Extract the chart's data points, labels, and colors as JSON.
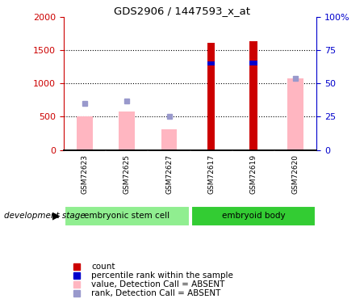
{
  "title": "GDS2906 / 1447593_x_at",
  "samples": [
    "GSM72623",
    "GSM72625",
    "GSM72627",
    "GSM72617",
    "GSM72619",
    "GSM72620"
  ],
  "ylim_left": [
    0,
    2000
  ],
  "ylim_right": [
    0,
    100
  ],
  "yticks_left": [
    0,
    500,
    1000,
    1500,
    2000
  ],
  "yticks_right": [
    0,
    25,
    50,
    75,
    100
  ],
  "ytick_labels_right": [
    "0",
    "25",
    "50",
    "75",
    "100%"
  ],
  "background_color": "#ffffff",
  "red_bar_color": "#CC0000",
  "pink_bar_color": "#FFB6C1",
  "blue_marker_color": "#9999CC",
  "blue_segment_color": "#0000CC",
  "gray_bg": "#D3D3D3",
  "green_light": "#90EE90",
  "green_dark": "#33CC33",
  "absent_value_bars": {
    "GSM72623": 500,
    "GSM72625": 575,
    "GSM72627": 315,
    "GSM72617": null,
    "GSM72619": null,
    "GSM72620": 1070
  },
  "absent_rank_markers": {
    "GSM72623": 700,
    "GSM72625": 740,
    "GSM72627": 510,
    "GSM72617": null,
    "GSM72619": null,
    "GSM72620": 1070
  },
  "count_bars": {
    "GSM72623": null,
    "GSM72625": null,
    "GSM72627": null,
    "GSM72617": 1610,
    "GSM72619": 1635,
    "GSM72620": null
  },
  "percentile_rank_bars": {
    "GSM72623": null,
    "GSM72625": null,
    "GSM72627": null,
    "GSM72617": [
      1270,
      1330
    ],
    "GSM72619": [
      1270,
      1335
    ],
    "GSM72620": null
  },
  "label_color_left": "#CC0000",
  "label_color_right": "#0000CC",
  "group1_label": "embryonic stem cell",
  "group2_label": "embryoid body",
  "dev_stage_label": "development stage",
  "legend_items": [
    {
      "color": "#CC0000",
      "label": "count"
    },
    {
      "color": "#0000CC",
      "label": "percentile rank within the sample"
    },
    {
      "color": "#FFB6C1",
      "label": "value, Detection Call = ABSENT"
    },
    {
      "color": "#9999CC",
      "label": "rank, Detection Call = ABSENT"
    }
  ]
}
